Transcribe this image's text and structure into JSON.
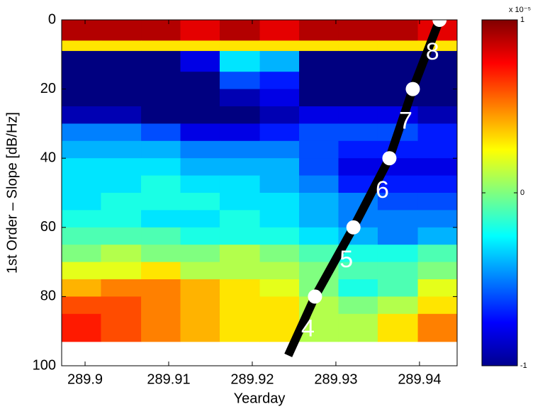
{
  "chart_data": {
    "type": "heatmap",
    "x_label": "Yearday",
    "y_label": "1st Order – Slope [dB/Hz]",
    "xlim": [
      289.8972,
      289.9445
    ],
    "ylim": [
      0,
      100
    ],
    "y_reversed": true,
    "xticks": [
      289.9,
      289.91,
      289.92,
      289.93,
      289.94
    ],
    "yticks": [
      0,
      20,
      40,
      60,
      80,
      100
    ],
    "x_bins": [
      289.8972,
      289.9019,
      289.9067,
      289.9114,
      289.9161,
      289.9209,
      289.9256,
      289.9303,
      289.935,
      289.9398,
      289.9445
    ],
    "y_bins": [
      0,
      6,
      9,
      15,
      20,
      25,
      30,
      35,
      40,
      45,
      50,
      55,
      60,
      65,
      70,
      75,
      80,
      85,
      93
    ],
    "z": [
      [
        0.9,
        0.9,
        0.9,
        0.8,
        0.9,
        0.8,
        0.9,
        0.9,
        0.9,
        0.8
      ],
      [
        0.3,
        0.3,
        0.3,
        0.3,
        0.3,
        0.3,
        0.3,
        0.3,
        0.3,
        0.3
      ],
      [
        -1,
        -1,
        -1,
        -0.8,
        -0.3,
        -0.4,
        -1,
        -1,
        -1,
        -1
      ],
      [
        -1,
        -1,
        -1,
        -1,
        -0.6,
        -0.7,
        -1,
        -1,
        -1,
        -1
      ],
      [
        -1,
        -1,
        -1,
        -1,
        -0.9,
        -0.8,
        -1,
        -1,
        -1,
        -1
      ],
      [
        -0.9,
        -0.9,
        -1,
        -1,
        -1,
        -0.9,
        -0.8,
        -0.8,
        -0.8,
        -0.9
      ],
      [
        -0.5,
        -0.5,
        -0.6,
        -0.8,
        -0.8,
        -0.7,
        -0.6,
        -0.6,
        -0.6,
        -0.7
      ],
      [
        -0.4,
        -0.4,
        -0.4,
        -0.5,
        -0.5,
        -0.5,
        -0.6,
        -0.7,
        -0.7,
        -0.7
      ],
      [
        -0.3,
        -0.3,
        -0.3,
        -0.4,
        -0.4,
        -0.4,
        -0.6,
        -0.8,
        -0.8,
        -0.8
      ],
      [
        -0.3,
        -0.3,
        -0.2,
        -0.3,
        -0.3,
        -0.4,
        -0.5,
        -0.7,
        -0.7,
        -0.7
      ],
      [
        -0.3,
        -0.2,
        -0.2,
        -0.2,
        -0.3,
        -0.3,
        -0.4,
        -0.5,
        -0.6,
        -0.6
      ],
      [
        -0.2,
        -0.2,
        -0.3,
        -0.3,
        -0.2,
        -0.3,
        -0.4,
        -0.5,
        -0.5,
        -0.5
      ],
      [
        -0.1,
        -0.1,
        -0.1,
        -0.2,
        -0.2,
        -0.2,
        -0.3,
        -0.4,
        -0.5,
        -0.4
      ],
      [
        0,
        0.1,
        0,
        0,
        0.1,
        0,
        -0.1,
        -0.2,
        -0.2,
        -0.1
      ],
      [
        0.2,
        0.2,
        0.3,
        0.1,
        0.1,
        0.1,
        0,
        -0.1,
        -0.1,
        0
      ],
      [
        0.4,
        0.5,
        0.5,
        0.4,
        0.3,
        0.2,
        0,
        -0.2,
        -0.1,
        0.2
      ],
      [
        0.6,
        0.6,
        0.5,
        0.4,
        0.3,
        0.3,
        0.1,
        0,
        0.1,
        0.3
      ],
      [
        0.7,
        0.6,
        0.5,
        0.4,
        0.3,
        0.3,
        0.1,
        0.1,
        0.3,
        0.5
      ]
    ],
    "zlim": [
      -1,
      1
    ],
    "zticks": [
      -1,
      0,
      1
    ],
    "colorbar_scale_label": "x 10⁻⁵",
    "track": {
      "line_x": [
        289.9243,
        289.9275,
        289.9321,
        289.9364,
        289.9392,
        289.9424
      ],
      "line_y": [
        97,
        80,
        60,
        40,
        20,
        0
      ],
      "x": [
        289.9424,
        289.9392,
        289.9364,
        289.9321,
        289.9275
      ],
      "y": [
        0,
        20,
        40,
        60,
        80
      ],
      "labels": [
        "8",
        "7",
        "6",
        "5",
        "4"
      ],
      "color": "#000000"
    }
  }
}
